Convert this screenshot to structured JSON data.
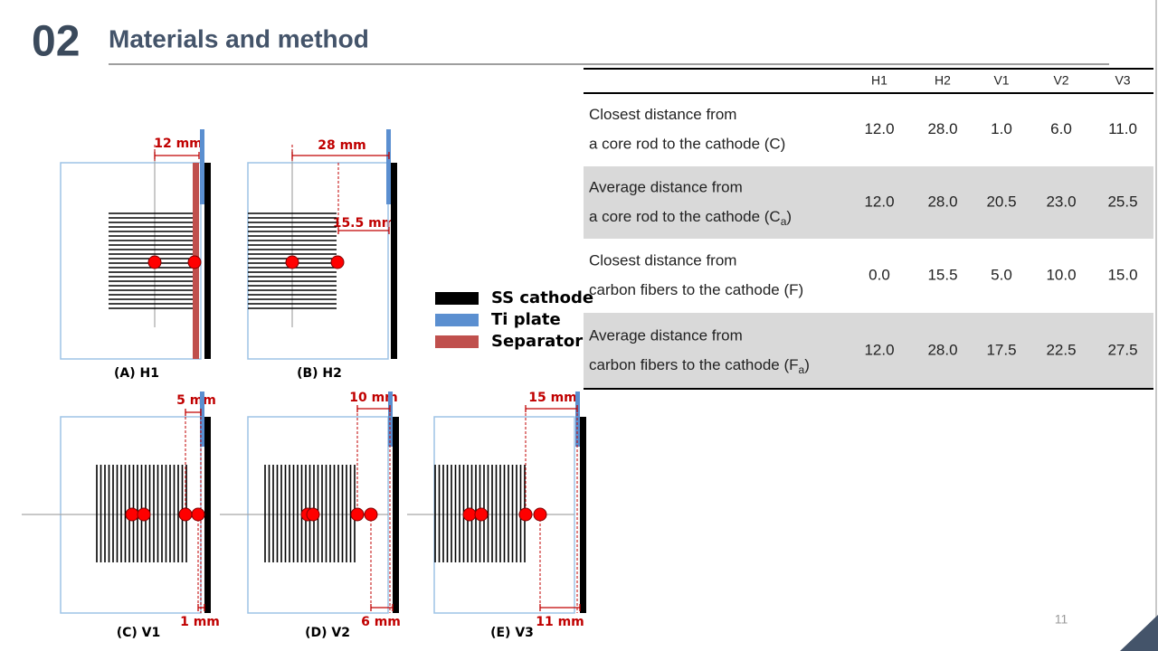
{
  "header": {
    "number": "02",
    "title": "Materials and method"
  },
  "legend": [
    {
      "label": "SS cathode",
      "color": "#000000"
    },
    {
      "label": "Ti plate",
      "color": "#5b8fd0"
    },
    {
      "label": "Separator",
      "color": "#c0504d"
    }
  ],
  "panels": [
    {
      "caption": "(A) H1",
      "dimensions": [
        "12 mm"
      ]
    },
    {
      "caption": "(B) H2",
      "dimensions": [
        "28 mm",
        "15.5 mm"
      ]
    },
    {
      "caption": "(C) V1",
      "dimensions": [
        "5 mm",
        "1 mm"
      ]
    },
    {
      "caption": "(D) V2",
      "dimensions": [
        "10 mm",
        "6 mm"
      ]
    },
    {
      "caption": "(E) V3",
      "dimensions": [
        "15 mm",
        "11 mm"
      ]
    }
  ],
  "table": {
    "columns": [
      "H1",
      "H2",
      "V1",
      "V2",
      "V3"
    ],
    "rows": [
      {
        "label": [
          "Closest distance from",
          "a core rod to the cathode (C)"
        ],
        "cells": [
          "12.0",
          "28.0",
          "1.0",
          "6.0",
          "11.0"
        ]
      },
      {
        "label": [
          "Average distance from",
          "a core rod to the cathode (C"
        ],
        "subscript": "a",
        "label_end": ")",
        "cells": [
          "12.0",
          "28.0",
          "20.5",
          "23.0",
          "25.5"
        ]
      },
      {
        "label": [
          "Closest distance from",
          "carbon fibers to the cathode (F)"
        ],
        "cells": [
          "0.0",
          "15.5",
          "5.0",
          "10.0",
          "15.0"
        ]
      },
      {
        "label": [
          "Average distance from",
          "carbon fibers to the cathode (F"
        ],
        "subscript": "a",
        "label_end": ")",
        "cells": [
          "12.0",
          "28.0",
          "17.5",
          "22.5",
          "27.5"
        ]
      }
    ]
  },
  "page_number": "11"
}
